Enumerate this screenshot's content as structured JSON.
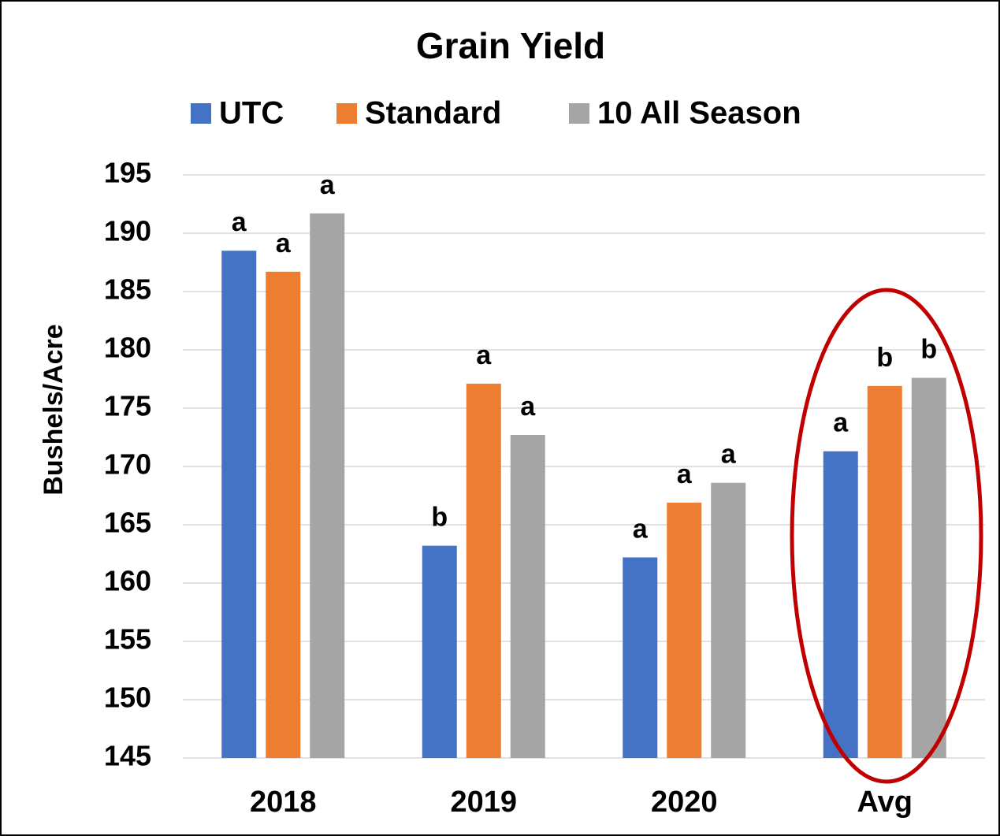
{
  "chart_data": {
    "type": "bar",
    "title": "Grain Yield",
    "y_label": "Bushels/Acre",
    "categories": [
      "2018",
      "2019",
      "2020",
      "Avg"
    ],
    "series": [
      {
        "name": "UTC",
        "color": "#4472c4",
        "values": [
          188.5,
          163.2,
          162.2,
          171.3
        ],
        "letters": [
          "a",
          "b",
          "a",
          "a"
        ]
      },
      {
        "name": "Standard",
        "color": "#ed7d31",
        "values": [
          186.7,
          177.1,
          166.9,
          176.9
        ],
        "letters": [
          "a",
          "a",
          "a",
          "b"
        ]
      },
      {
        "name": "10 All Season",
        "color": "#a5a5a5",
        "values": [
          191.7,
          172.7,
          168.6,
          177.6
        ],
        "letters": [
          "a",
          "a",
          "a",
          "b"
        ]
      }
    ],
    "ylim": [
      145,
      195
    ],
    "yticks": [
      145,
      150,
      155,
      160,
      165,
      170,
      175,
      180,
      185,
      190,
      195
    ],
    "grid": true,
    "legend": "top"
  }
}
